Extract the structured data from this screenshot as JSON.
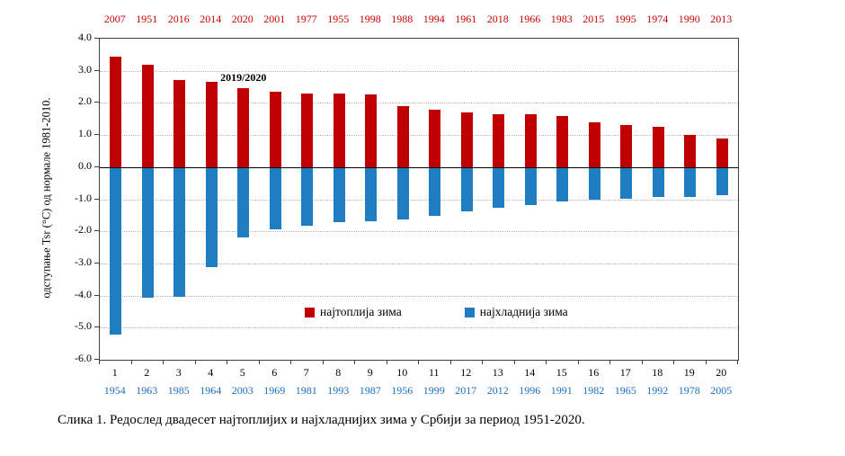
{
  "caption": "Слика 1. Редослед двадесет најтоплијих и најхладнијих зима у Србији за период 1951-2020.",
  "chart_data": {
    "type": "bar",
    "title": "",
    "xlabel": "",
    "ylabel": "одступање Tsr (°C)  од  нормале 1981-2010.",
    "ylim": [
      -6.0,
      4.0
    ],
    "ytick_step": 1.0,
    "grid": true,
    "legend_position": "inside-bottom-center",
    "ranks": [
      1,
      2,
      3,
      4,
      5,
      6,
      7,
      8,
      9,
      10,
      11,
      12,
      13,
      14,
      15,
      16,
      17,
      18,
      19,
      20
    ],
    "annotation": {
      "text": "2019/2020",
      "rank": 5,
      "value": 3.0
    },
    "series": [
      {
        "name": "најтоплија зима",
        "color": "#c00000",
        "axis": "top",
        "years": [
          "2007",
          "1951",
          "2016",
          "2014",
          "2020",
          "2001",
          "1977",
          "1955",
          "1998",
          "1988",
          "1994",
          "1961",
          "2018",
          "1966",
          "1983",
          "2015",
          "1995",
          "1974",
          "1990",
          "2013"
        ],
        "values": [
          3.45,
          3.2,
          2.7,
          2.65,
          2.45,
          2.35,
          2.3,
          2.3,
          2.25,
          1.9,
          1.8,
          1.7,
          1.65,
          1.65,
          1.6,
          1.4,
          1.3,
          1.25,
          1.0,
          0.9
        ]
      },
      {
        "name": "најхладнија зима",
        "color": "#1f7ec2",
        "axis": "bottom",
        "years": [
          "1954",
          "1963",
          "1985",
          "1964",
          "2003",
          "1969",
          "1981",
          "1993",
          "1987",
          "1956",
          "1999",
          "2017",
          "2012",
          "1996",
          "1991",
          "1982",
          "1965",
          "1992",
          "1978",
          "2005"
        ],
        "values": [
          -5.2,
          -4.05,
          -4.0,
          -3.1,
          -2.15,
          -1.9,
          -1.8,
          -1.7,
          -1.65,
          -1.6,
          -1.5,
          -1.35,
          -1.25,
          -1.15,
          -1.05,
          -1.0,
          -0.95,
          -0.9,
          -0.9,
          -0.85
        ]
      }
    ]
  }
}
